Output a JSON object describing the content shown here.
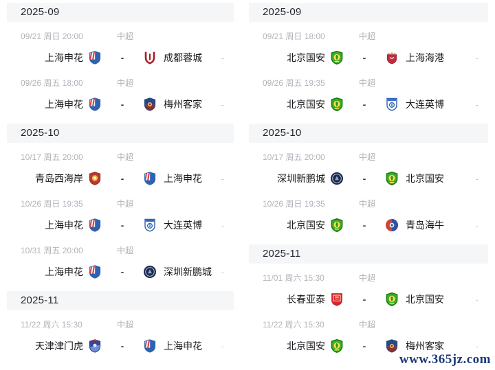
{
  "watermark": "www.365jz.com",
  "labels": {
    "vs_separator": "-",
    "score_placeholder": "-"
  },
  "columns": [
    {
      "id": "left",
      "sections": [
        {
          "month": "2025-09",
          "matches": [
            {
              "date": "09/21 周日 20:00",
              "league": "中超",
              "home": {
                "name": "上海申花",
                "logo": "shanghai-shenhua"
              },
              "away": {
                "name": "成都蓉城",
                "logo": "chengdu-rongcheng"
              }
            },
            {
              "date": "09/26 周五 18:00",
              "league": "中超",
              "home": {
                "name": "上海申花",
                "logo": "shanghai-shenhua"
              },
              "away": {
                "name": "梅州客家",
                "logo": "meizhou-hakka"
              }
            }
          ]
        },
        {
          "month": "2025-10",
          "matches": [
            {
              "date": "10/17 周五 20:00",
              "league": "中超",
              "home": {
                "name": "青岛西海岸",
                "logo": "qingdao-west-coast"
              },
              "away": {
                "name": "上海申花",
                "logo": "shanghai-shenhua"
              }
            },
            {
              "date": "10/26 周日 19:35",
              "league": "中超",
              "home": {
                "name": "上海申花",
                "logo": "shanghai-shenhua"
              },
              "away": {
                "name": "大连英博",
                "logo": "dalian-yingbo"
              }
            },
            {
              "date": "10/31 周五 20:00",
              "league": "中超",
              "home": {
                "name": "上海申花",
                "logo": "shanghai-shenhua"
              },
              "away": {
                "name": "深圳新鹏城",
                "logo": "shenzhen-peng-city"
              }
            }
          ]
        },
        {
          "month": "2025-11",
          "matches": [
            {
              "date": "11/22 周六 15:30",
              "league": "中超",
              "home": {
                "name": "天津津门虎",
                "logo": "tianjin-jinmen-tiger"
              },
              "away": {
                "name": "上海申花",
                "logo": "shanghai-shenhua"
              }
            }
          ]
        }
      ]
    },
    {
      "id": "right",
      "sections": [
        {
          "month": "2025-09",
          "matches": [
            {
              "date": "09/21 周日 18:00",
              "league": "中超",
              "home": {
                "name": "北京国安",
                "logo": "beijing-guoan"
              },
              "away": {
                "name": "上海海港",
                "logo": "shanghai-port"
              }
            },
            {
              "date": "09/26 周五 19:35",
              "league": "中超",
              "home": {
                "name": "北京国安",
                "logo": "beijing-guoan"
              },
              "away": {
                "name": "大连英博",
                "logo": "dalian-yingbo"
              }
            }
          ]
        },
        {
          "month": "2025-10",
          "matches": [
            {
              "date": "10/17 周五 20:00",
              "league": "中超",
              "home": {
                "name": "深圳新鹏城",
                "logo": "shenzhen-peng-city"
              },
              "away": {
                "name": "北京国安",
                "logo": "beijing-guoan"
              }
            },
            {
              "date": "10/26 周日 19:35",
              "league": "中超",
              "home": {
                "name": "北京国安",
                "logo": "beijing-guoan"
              },
              "away": {
                "name": "青岛海牛",
                "logo": "qingdao-hainiu"
              }
            }
          ]
        },
        {
          "month": "2025-11",
          "matches": [
            {
              "date": "11/01 周六 15:30",
              "league": "中超",
              "home": {
                "name": "长春亚泰",
                "logo": "changchun-yatai"
              },
              "away": {
                "name": "北京国安",
                "logo": "beijing-guoan"
              }
            },
            {
              "date": "11/22 周六 15:30",
              "league": "中超",
              "home": {
                "name": "北京国安",
                "logo": "beijing-guoan"
              },
              "away": {
                "name": "梅州客家",
                "logo": "meizhou-hakka"
              }
            }
          ]
        }
      ]
    }
  ]
}
